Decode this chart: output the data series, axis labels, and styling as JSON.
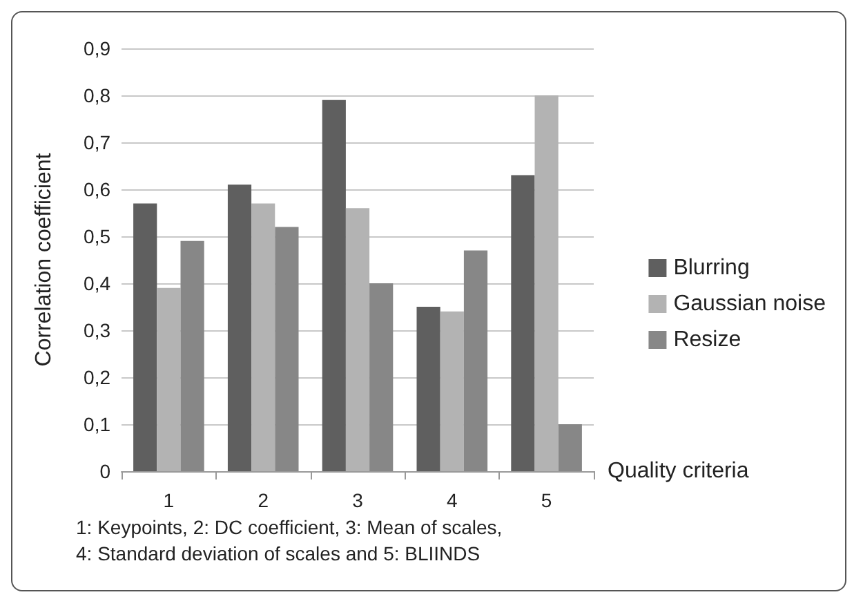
{
  "chart_data": {
    "type": "bar",
    "xlabel": "Quality criteria",
    "ylabel": "Correlation coefficient",
    "categories": [
      "1",
      "2",
      "3",
      "4",
      "5"
    ],
    "series": [
      {
        "name": "Blurring",
        "color": "#5f5f5f",
        "values": [
          0.57,
          0.61,
          0.79,
          0.35,
          0.63
        ]
      },
      {
        "name": "Gaussian noise",
        "color": "#b3b3b3",
        "values": [
          0.39,
          0.57,
          0.56,
          0.34,
          0.8
        ]
      },
      {
        "name": "Resize",
        "color": "#878787",
        "values": [
          0.49,
          0.52,
          0.4,
          0.47,
          0.1
        ]
      }
    ],
    "ylim": [
      0,
      0.9
    ],
    "yticks": [
      {
        "value": 0,
        "label": "0"
      },
      {
        "value": 0.1,
        "label": "0,1"
      },
      {
        "value": 0.2,
        "label": "0,2"
      },
      {
        "value": 0.3,
        "label": "0,3"
      },
      {
        "value": 0.4,
        "label": "0,4"
      },
      {
        "value": 0.5,
        "label": "0,5"
      },
      {
        "value": 0.6,
        "label": "0,6"
      },
      {
        "value": 0.7,
        "label": "0,7"
      },
      {
        "value": 0.8,
        "label": "0,8"
      },
      {
        "value": 0.9,
        "label": "0,9"
      }
    ],
    "grid": "y",
    "legend": "right",
    "annotations": [
      "1: Keypoints, 2: DC coefficient, 3: Mean of scales,\n4: Standard deviation of scales and 5: BLIINDS"
    ]
  }
}
